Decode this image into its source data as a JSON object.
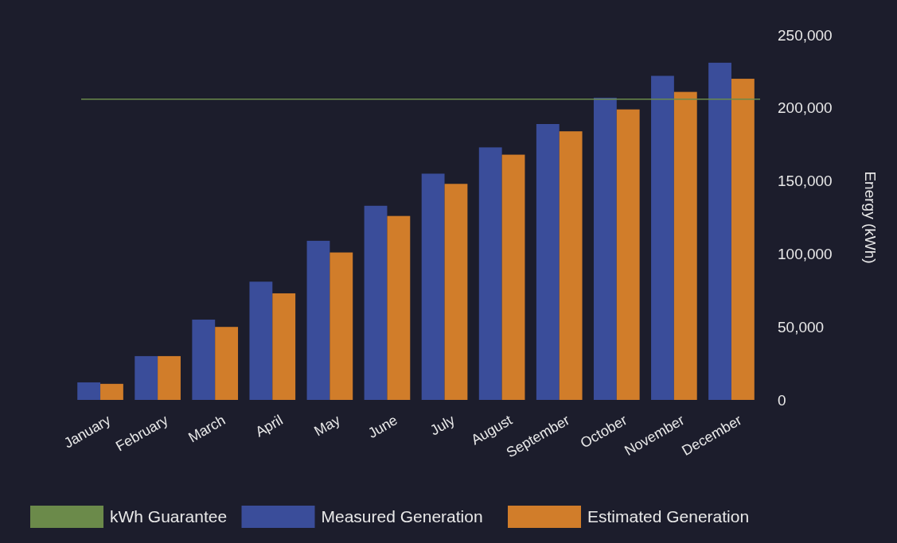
{
  "chart_data": {
    "type": "bar",
    "ylabel": "Energy (kWh)",
    "categories": [
      "January",
      "February",
      "March",
      "April",
      "May",
      "June",
      "July",
      "August",
      "September",
      "October",
      "November",
      "December"
    ],
    "series": [
      {
        "name": "Measured Generation",
        "color": "#3a4d9a",
        "values": [
          12000,
          30000,
          55000,
          81000,
          109000,
          133000,
          155000,
          173000,
          189000,
          207000,
          222000,
          231000
        ]
      },
      {
        "name": "Estimated Generation",
        "color": "#d17d2a",
        "values": [
          11000,
          30000,
          50000,
          73000,
          101000,
          126000,
          148000,
          168000,
          184000,
          199000,
          211000,
          220000
        ]
      }
    ],
    "ref_lines": [
      {
        "axis": "y",
        "value": 206000,
        "label": "kWh Guarantee",
        "color": "#6b8a4a"
      }
    ],
    "ylim": [
      0,
      250000
    ],
    "yticks": [
      {
        "value": 0,
        "label": "0"
      },
      {
        "value": 50000,
        "label": "50,000"
      },
      {
        "value": 100000,
        "label": "100,000"
      },
      {
        "value": 150000,
        "label": "150,000"
      },
      {
        "value": 200000,
        "label": "200,000"
      },
      {
        "value": 250000,
        "label": "250,000"
      }
    ],
    "grid": false,
    "legend": "bottom"
  }
}
